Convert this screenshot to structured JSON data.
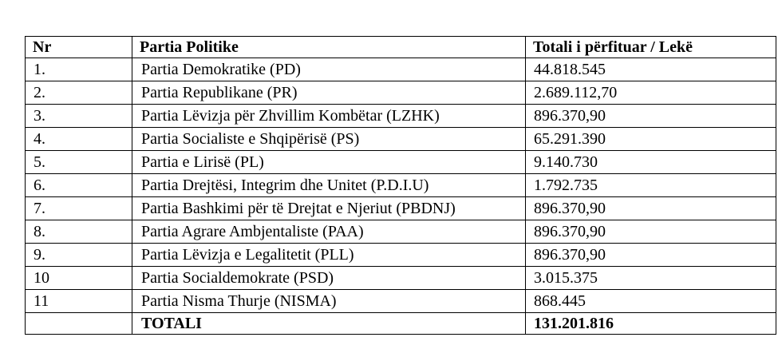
{
  "table": {
    "headers": {
      "nr": "Nr",
      "party": "Partia Politike",
      "total": "Totali i përfituar / Lekë"
    },
    "rows": [
      {
        "nr": "1.",
        "party": "Partia Demokratike (PD)",
        "total": "44.818.545"
      },
      {
        "nr": "2.",
        "party": "Partia Republikane (PR)",
        "total": "2.689.112,70"
      },
      {
        "nr": "3.",
        "party": "Partia Lëvizja për Zhvillim Kombëtar (LZHK)",
        "total": "896.370,90"
      },
      {
        "nr": "4.",
        "party": "Partia Socialiste e Shqipërisë (PS)",
        "total": "65.291.390"
      },
      {
        "nr": "5.",
        "party": "Partia e Lirisë (PL)",
        "total": "9.140.730"
      },
      {
        "nr": "6.",
        "party": "Partia Drejtësi, Integrim dhe Unitet (P.D.I.U)",
        "total": "1.792.735"
      },
      {
        "nr": "7.",
        "party": "Partia Bashkimi për të Drejtat e Njeriut (PBDNJ)",
        "total": "896.370,90"
      },
      {
        "nr": "8.",
        "party": "Partia Agrare Ambjentaliste (PAA)",
        "total": "896.370,90"
      },
      {
        "nr": "9.",
        "party": "Partia Lëvizja e Legalitetit (PLL)",
        "total": "896.370,90"
      },
      {
        "nr": "10",
        "party": "Partia Socialdemokrate (PSD)",
        "total": "3.015.375"
      },
      {
        "nr": "11",
        "party": "Partia Nisma Thurje (NISMA)",
        "total": "868.445"
      }
    ],
    "footer": {
      "nr": "",
      "party": "TOTALI",
      "total": "131.201.816"
    }
  }
}
